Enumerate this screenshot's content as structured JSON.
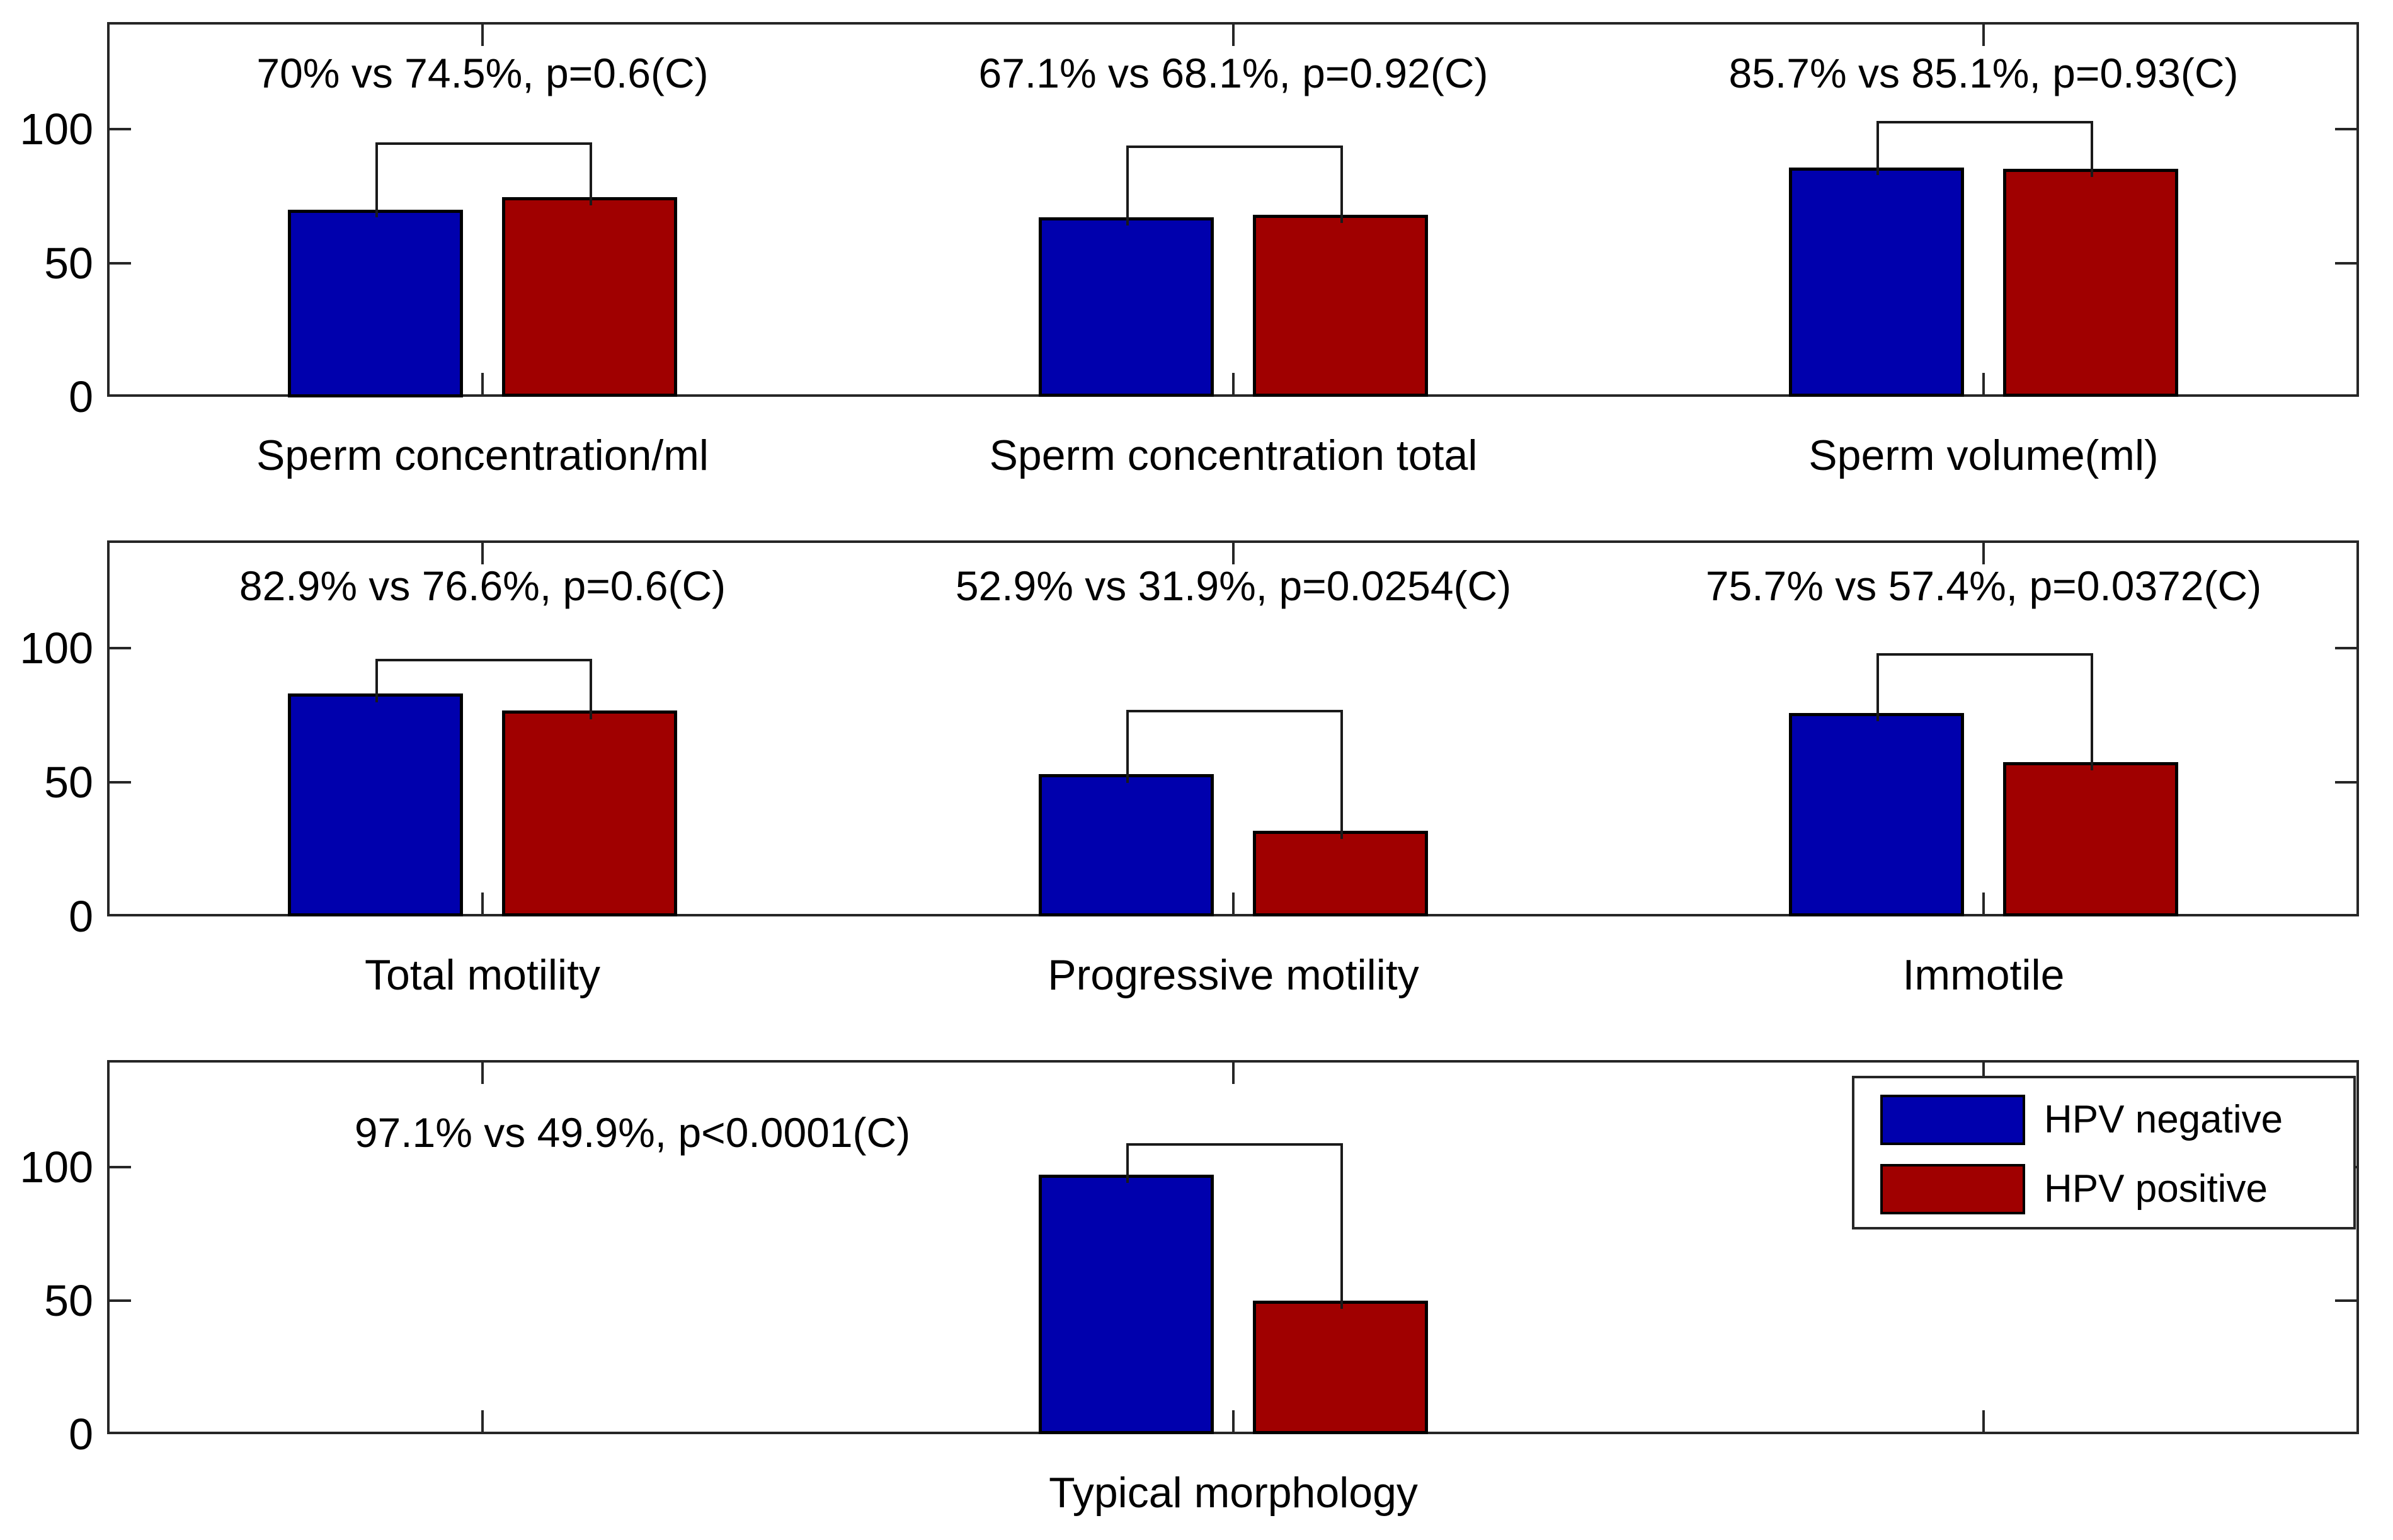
{
  "figure_colors": {
    "hpv_negative": "#0000AD",
    "hpv_positive": "#A00000",
    "axis": "#262626"
  },
  "legend": {
    "position": "northeast",
    "items": [
      {
        "label": "HPV negative",
        "color": "hpv_negative"
      },
      {
        "label": "HPV positive",
        "color": "hpv_positive"
      }
    ]
  },
  "chart_data": [
    {
      "type": "bar",
      "categories": [
        "Sperm concentration/ml",
        "Sperm concentration total",
        "Sperm volume(ml)"
      ],
      "series": [
        {
          "name": "HPV negative",
          "values": [
            70,
            67.1,
            85.7
          ]
        },
        {
          "name": "HPV positive",
          "values": [
            74.5,
            68.1,
            85.1
          ]
        }
      ],
      "annotations": [
        "70% vs 74.5%, p=0.6(C)",
        "67.1% vs 68.1%, p=0.92(C)",
        "85.7% vs 85.1%, p=0.93(C)"
      ],
      "bracket_levels": [
        95,
        94,
        103
      ],
      "ylim": [
        0,
        140
      ],
      "yticks": [
        0,
        50,
        100
      ],
      "grid": false,
      "legend_visible": false
    },
    {
      "type": "bar",
      "categories": [
        "Total motility",
        "Progressive motility",
        "Immotile"
      ],
      "series": [
        {
          "name": "HPV negative",
          "values": [
            82.9,
            52.9,
            75.7
          ]
        },
        {
          "name": "HPV positive",
          "values": [
            76.6,
            31.9,
            57.4
          ]
        }
      ],
      "annotations": [
        "82.9% vs 76.6%, p=0.6(C)",
        "52.9% vs 31.9%, p=0.0254(C)",
        "75.7% vs 57.4%, p=0.0372(C)"
      ],
      "bracket_levels": [
        96,
        77,
        98
      ],
      "ylim": [
        0,
        140
      ],
      "yticks": [
        0,
        50,
        100
      ],
      "grid": false,
      "legend_visible": false
    },
    {
      "type": "bar",
      "categories": [
        "Typical morphology"
      ],
      "series": [
        {
          "name": "HPV negative",
          "values": [
            97.1
          ]
        },
        {
          "name": "HPV positive",
          "values": [
            49.9
          ]
        }
      ],
      "annotations": [
        "97.1% vs 49.9%, p<0.0001(C)"
      ],
      "bracket_levels": [
        109
      ],
      "group_slots": [
        2
      ],
      "annotation_slots": [
        1.2
      ],
      "ylim": [
        0,
        140
      ],
      "yticks": [
        0,
        50,
        100
      ],
      "grid": false,
      "legend_visible": true
    }
  ]
}
